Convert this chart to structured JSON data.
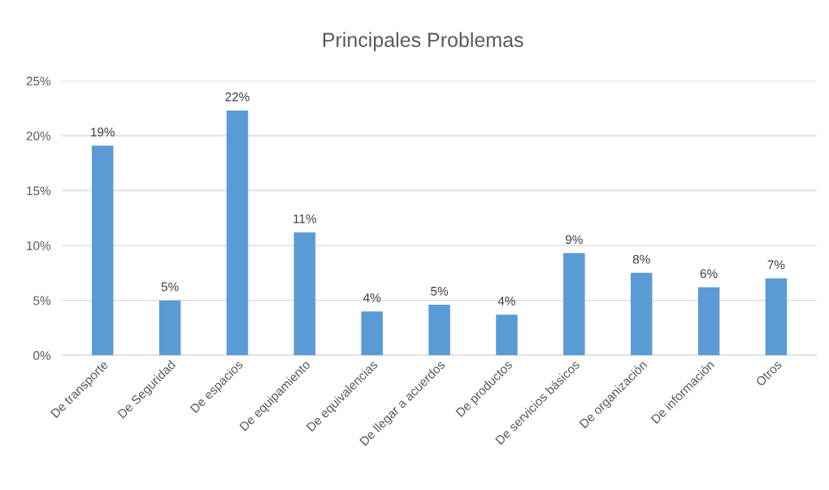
{
  "chart_data": {
    "type": "bar",
    "title": "Principales Problemas",
    "categories": [
      "De transporte",
      "De Seguridad",
      "De espacios",
      "De equipamiento",
      "De equivalencias",
      "De llegar a acuerdos",
      "De productos",
      "De servicios básicos",
      "De organización",
      "De información",
      "Otros"
    ],
    "values": [
      19.1,
      5.0,
      22.3,
      11.2,
      4.0,
      4.6,
      3.7,
      9.3,
      7.5,
      6.2,
      7.0
    ],
    "value_labels": [
      "19%",
      "5%",
      "22%",
      "11%",
      "4%",
      "5%",
      "4%",
      "9%",
      "8%",
      "6%",
      "7%"
    ],
    "color": "#5b9bd5",
    "ylim": [
      0,
      25
    ],
    "yticks": [
      {
        "value": 0,
        "label": "0%"
      },
      {
        "value": 5,
        "label": "5%"
      },
      {
        "value": 10,
        "label": "10%"
      },
      {
        "value": 15,
        "label": "15%"
      },
      {
        "value": 20,
        "label": "20%"
      },
      {
        "value": 25,
        "label": "25%"
      }
    ],
    "grid": "y"
  }
}
